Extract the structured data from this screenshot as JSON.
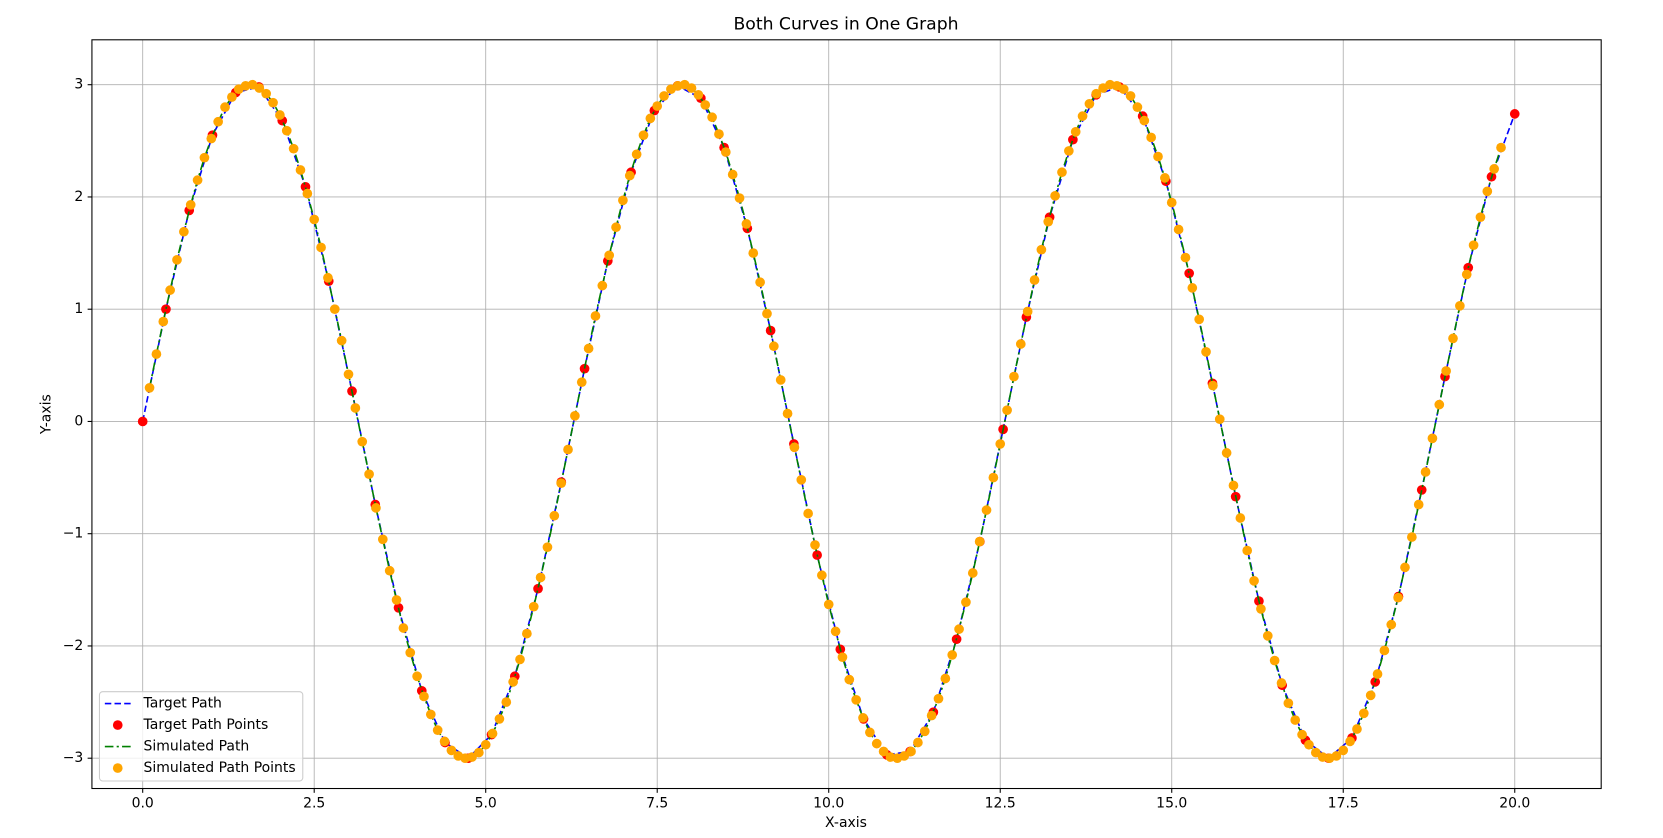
{
  "chart_data": {
    "type": "line",
    "title": "Both Curves in One Graph",
    "x_label": "X-axis",
    "y_label": "Y-axis",
    "xlim": [
      -0.74,
      21.26
    ],
    "ylim": [
      -3.27,
      3.4
    ],
    "xticks": [
      {
        "value": 0,
        "label": "0.0"
      },
      2.5,
      {
        "value": 5,
        "label": "5.0"
      },
      7.5,
      {
        "value": 10,
        "label": "10.0"
      },
      12.5,
      {
        "value": 15,
        "label": "15.0"
      },
      17.5,
      {
        "value": 20,
        "label": "20.0"
      }
    ],
    "yticks": [
      {
        "value": -3,
        "label": "−3"
      },
      {
        "value": -2,
        "label": "−2"
      },
      {
        "value": -1,
        "label": "−1"
      },
      0,
      1,
      2,
      3
    ],
    "grid": true,
    "legend": "lower left",
    "series": [
      {
        "name": "Target Path",
        "color": "#0000ff",
        "style": "dashed",
        "marker_name": "Target Path Points",
        "marker_color": "#ff0000",
        "x": [
          0,
          0.339,
          0.678,
          1.017,
          1.356,
          1.695,
          2.034,
          2.373,
          2.712,
          3.051,
          3.39,
          3.729,
          4.068,
          4.407,
          4.746,
          5.085,
          5.424,
          5.763,
          6.102,
          6.441,
          6.78,
          7.119,
          7.458,
          7.797,
          8.136,
          8.475,
          8.814,
          9.153,
          9.492,
          9.831,
          10.169,
          10.508,
          10.847,
          11.186,
          11.525,
          11.864,
          12.203,
          12.542,
          12.881,
          13.22,
          13.559,
          13.898,
          14.237,
          14.576,
          14.915,
          15.254,
          15.593,
          15.932,
          16.271,
          16.61,
          16.949,
          17.288,
          17.627,
          17.966,
          18.305,
          18.644,
          18.983,
          19.322,
          19.661,
          20
        ],
        "values": [
          0,
          1.0,
          1.88,
          2.55,
          2.93,
          2.98,
          2.68,
          2.09,
          1.25,
          0.27,
          -0.74,
          -1.66,
          -2.4,
          -2.86,
          -3.0,
          -2.79,
          -2.27,
          -1.49,
          -0.54,
          0.47,
          1.43,
          2.22,
          2.77,
          2.99,
          2.88,
          2.44,
          1.72,
          0.81,
          -0.2,
          -1.19,
          -2.03,
          -2.65,
          -2.97,
          -2.94,
          -2.59,
          -1.94,
          -1.07,
          -0.07,
          0.93,
          1.82,
          2.51,
          2.91,
          2.98,
          2.72,
          2.14,
          1.32,
          0.34,
          -0.67,
          -1.6,
          -2.35,
          -2.84,
          -3.0,
          -2.82,
          -2.32,
          -1.56,
          -0.61,
          0.4,
          1.37,
          2.18,
          2.74
        ]
      },
      {
        "name": "Simulated Path",
        "color": "#008000",
        "style": "dashdot",
        "marker_name": "Simulated Path Points",
        "marker_color": "#ffa500",
        "x": [
          0.1,
          0.2,
          0.3,
          0.4,
          0.5,
          0.6,
          0.7,
          0.8,
          0.9,
          1.0,
          1.1,
          1.2,
          1.3,
          1.4,
          1.5,
          1.6,
          1.7,
          1.8,
          1.9,
          2.0,
          2.1,
          2.2,
          2.3,
          2.4,
          2.5,
          2.6,
          2.7,
          2.8,
          2.9,
          3.0,
          3.1,
          3.2,
          3.3,
          3.4,
          3.5,
          3.6,
          3.7,
          3.8,
          3.9,
          4.0,
          4.1,
          4.2,
          4.3,
          4.4,
          4.5,
          4.6,
          4.7,
          4.8,
          4.9,
          5.0,
          5.1,
          5.2,
          5.3,
          5.4,
          5.5,
          5.6,
          5.7,
          5.8,
          5.9,
          6.0,
          6.1,
          6.2,
          6.3,
          6.4,
          6.5,
          6.6,
          6.7,
          6.8,
          6.9,
          7.0,
          7.1,
          7.2,
          7.3,
          7.4,
          7.5,
          7.6,
          7.7,
          7.8,
          7.9,
          8.0,
          8.1,
          8.2,
          8.3,
          8.4,
          8.5,
          8.6,
          8.7,
          8.8,
          8.9,
          9.0,
          9.1,
          9.2,
          9.3,
          9.4,
          9.5,
          9.6,
          9.7,
          9.8,
          9.9,
          10.0,
          10.1,
          10.2,
          10.3,
          10.4,
          10.5,
          10.6,
          10.7,
          10.8,
          10.9,
          11.0,
          11.1,
          11.2,
          11.3,
          11.4,
          11.5,
          11.6,
          11.7,
          11.8,
          11.9,
          12.0,
          12.1,
          12.2,
          12.3,
          12.4,
          12.5,
          12.6,
          12.7,
          12.8,
          12.9,
          13.0,
          13.1,
          13.2,
          13.3,
          13.4,
          13.5,
          13.6,
          13.7,
          13.8,
          13.9,
          14.0,
          14.1,
          14.2,
          14.3,
          14.4,
          14.5,
          14.6,
          14.7,
          14.8,
          14.9,
          15.0,
          15.1,
          15.2,
          15.3,
          15.4,
          15.5,
          15.6,
          15.7,
          15.8,
          15.9,
          16.0,
          16.1,
          16.2,
          16.3,
          16.4,
          16.5,
          16.6,
          16.7,
          16.8,
          16.9,
          17.0,
          17.1,
          17.2,
          17.3,
          17.4,
          17.5,
          17.6,
          17.7,
          17.8,
          17.9,
          18.0,
          18.1,
          18.2,
          18.3,
          18.4,
          18.5,
          18.6,
          18.7,
          18.8,
          18.9,
          19.0,
          19.1,
          19.2,
          19.3,
          19.4,
          19.5,
          19.6,
          19.7,
          19.8
        ],
        "values": [
          0.3,
          0.6,
          0.89,
          1.17,
          1.44,
          1.69,
          1.93,
          2.15,
          2.35,
          2.52,
          2.67,
          2.8,
          2.89,
          2.96,
          2.99,
          3.0,
          2.97,
          2.92,
          2.84,
          2.73,
          2.59,
          2.43,
          2.24,
          2.03,
          1.8,
          1.55,
          1.28,
          1.0,
          0.72,
          0.42,
          0.12,
          -0.18,
          -0.47,
          -0.77,
          -1.05,
          -1.33,
          -1.59,
          -1.84,
          -2.06,
          -2.27,
          -2.45,
          -2.61,
          -2.75,
          -2.85,
          -2.93,
          -2.98,
          -3.0,
          -2.99,
          -2.95,
          -2.88,
          -2.78,
          -2.65,
          -2.5,
          -2.32,
          -2.12,
          -1.89,
          -1.65,
          -1.39,
          -1.12,
          -0.84,
          -0.55,
          -0.25,
          0.05,
          0.35,
          0.65,
          0.94,
          1.21,
          1.48,
          1.73,
          1.97,
          2.19,
          2.38,
          2.55,
          2.7,
          2.81,
          2.9,
          2.96,
          2.99,
          3.0,
          2.97,
          2.91,
          2.82,
          2.71,
          2.56,
          2.4,
          2.2,
          1.99,
          1.76,
          1.5,
          1.24,
          0.96,
          0.67,
          0.37,
          0.07,
          -0.23,
          -0.52,
          -0.82,
          -1.1,
          -1.37,
          -1.63,
          -1.87,
          -2.1,
          -2.3,
          -2.48,
          -2.64,
          -2.77,
          -2.87,
          -2.94,
          -2.99,
          -3.0,
          -2.98,
          -2.94,
          -2.86,
          -2.76,
          -2.62,
          -2.47,
          -2.29,
          -2.08,
          -1.85,
          -1.61,
          -1.35,
          -1.07,
          -0.79,
          -0.5,
          -0.2,
          0.1,
          0.4,
          0.69,
          0.98,
          1.26,
          1.53,
          1.78,
          2.01,
          2.22,
          2.41,
          2.58,
          2.72,
          2.83,
          2.92,
          2.97,
          3.0,
          2.99,
          2.96,
          2.9,
          2.8,
          2.68,
          2.53,
          2.36,
          2.17,
          1.95,
          1.71,
          1.46,
          1.19,
          0.91,
          0.62,
          0.32,
          0.02,
          -0.28,
          -0.57,
          -0.86,
          -1.15,
          -1.42,
          -1.67,
          -1.91,
          -2.13,
          -2.33,
          -2.51,
          -2.66,
          -2.79,
          -2.88,
          -2.95,
          -2.99,
          -3.0,
          -2.98,
          -2.93,
          -2.85,
          -2.74,
          -2.6,
          -2.44,
          -2.25,
          -2.04,
          -1.81,
          -1.57,
          -1.3,
          -1.03,
          -0.74,
          -0.45,
          -0.15,
          0.15,
          0.45,
          0.74,
          1.03,
          1.31,
          1.57,
          1.82,
          2.05,
          2.25,
          2.44
        ]
      }
    ]
  }
}
